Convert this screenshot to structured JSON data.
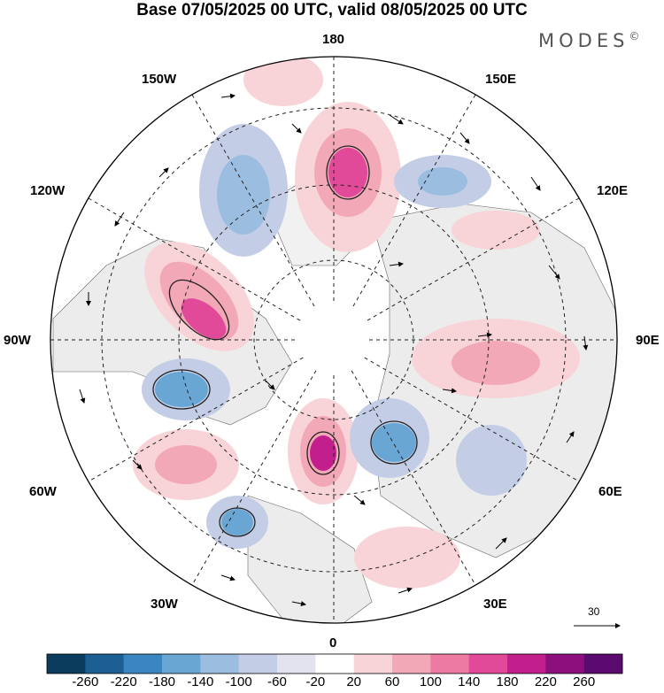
{
  "title": "Base 07/05/2025 00 UTC, valid 08/05/2025 00 UTC",
  "brand": "MODES",
  "brand_mark": "©",
  "meridian_labels": {
    "m180": "180",
    "m0": "0",
    "w150": "150W",
    "e150": "150E",
    "w120": "120W",
    "e120": "120E",
    "w90": "90W",
    "e90": "90E",
    "w60": "60W",
    "e60": "60E",
    "w30": "30W",
    "e30": "30E"
  },
  "reference_vector": {
    "value": "30"
  },
  "colorbar": {
    "colors": [
      "#0b3c5d",
      "#1c5f92",
      "#3a86c0",
      "#6aa6d4",
      "#9bbde0",
      "#c3cde6",
      "#e3e3f0",
      "#ffffff",
      "#f8d4d8",
      "#f3a8b8",
      "#ec7aa2",
      "#e04a98",
      "#c21f8c",
      "#8c0f7d",
      "#5b0a70"
    ],
    "ticks": [
      "-260",
      "-220",
      "-180",
      "-140",
      "-100",
      "-60",
      "-20",
      "20",
      "60",
      "100",
      "140",
      "180",
      "220",
      "260"
    ]
  },
  "anomaly_centers": [
    {
      "sign": "positive",
      "value": 180,
      "label": "pacific-180"
    },
    {
      "sign": "negative",
      "value": -140,
      "label": "bering-150w"
    },
    {
      "sign": "positive",
      "value": 180,
      "label": "canada-100w"
    },
    {
      "sign": "negative",
      "value": -180,
      "label": "hudson-70w"
    },
    {
      "sign": "positive",
      "value": 100,
      "label": "atlantic-55w"
    },
    {
      "sign": "positive",
      "value": 180,
      "label": "north-atlantic-10w"
    },
    {
      "sign": "negative",
      "value": -140,
      "label": "scandinavia-20e"
    },
    {
      "sign": "positive",
      "value": 100,
      "label": "siberia-90e"
    },
    {
      "sign": "negative",
      "value": -100,
      "label": "asia-50e"
    },
    {
      "sign": "negative",
      "value": -100,
      "label": "siberia-140e"
    }
  ]
}
